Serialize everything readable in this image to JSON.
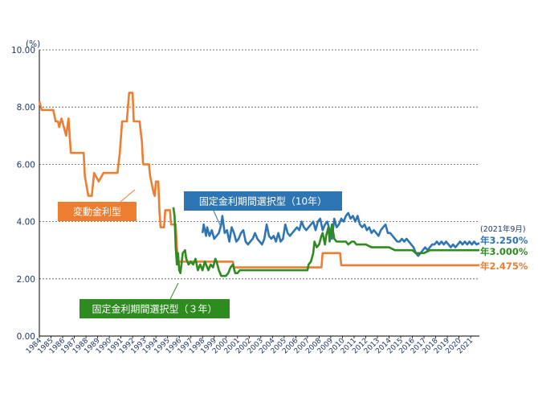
{
  "chart_data": {
    "type": "line",
    "y_unit": "(%)",
    "ylim": [
      0,
      10
    ],
    "yticks": [
      "0.00",
      "2.00",
      "4.00",
      "6.00",
      "8.00",
      "10.00"
    ],
    "x_range": [
      1984,
      2021.75
    ],
    "x_tick_labels": [
      "1984",
      "1985",
      "1986",
      "1987",
      "1988",
      "1989",
      "1990",
      "1991",
      "1992",
      "1993",
      "1994",
      "1995",
      "1996",
      "1997",
      "1998",
      "1999",
      "2000",
      "2001",
      "2002",
      "2003",
      "2004",
      "2005",
      "2006",
      "2007",
      "2008",
      "2009",
      "2010",
      "2011",
      "2012",
      "2013",
      "2014",
      "2015",
      "2016",
      "2017",
      "2018",
      "2019",
      "2020",
      "2021"
    ],
    "grid": "horizontal dashed",
    "date_note": "(2021年9月)",
    "colors": {
      "variable": "#ed7d31",
      "fixed10": "#2e75b6",
      "fixed3": "#2e8b1f",
      "axis": "#1f3864"
    },
    "series": [
      {
        "name": "変動金利型",
        "end_label": "年2.475%",
        "points": [
          [
            1984.0,
            8.2
          ],
          [
            1984.2,
            7.9
          ],
          [
            1985.2,
            7.9
          ],
          [
            1985.4,
            7.5
          ],
          [
            1985.6,
            7.5
          ],
          [
            1985.7,
            7.3
          ],
          [
            1985.9,
            7.6
          ],
          [
            1986.1,
            7.3
          ],
          [
            1986.3,
            7.0
          ],
          [
            1986.5,
            7.6
          ],
          [
            1986.7,
            6.4
          ],
          [
            1987.8,
            6.4
          ],
          [
            1987.9,
            5.6
          ],
          [
            1988.2,
            4.9
          ],
          [
            1988.5,
            4.9
          ],
          [
            1988.7,
            5.7
          ],
          [
            1989.1,
            5.4
          ],
          [
            1989.5,
            5.7
          ],
          [
            1990.7,
            5.7
          ],
          [
            1990.9,
            6.4
          ],
          [
            1991.1,
            7.5
          ],
          [
            1991.5,
            7.5
          ],
          [
            1991.7,
            8.5
          ],
          [
            1992.0,
            8.5
          ],
          [
            1992.1,
            7.5
          ],
          [
            1992.6,
            7.5
          ],
          [
            1992.8,
            6.8
          ],
          [
            1992.9,
            6.0
          ],
          [
            1993.4,
            6.0
          ],
          [
            1993.5,
            5.6
          ],
          [
            1993.8,
            5.0
          ],
          [
            1993.9,
            4.9
          ],
          [
            1994.0,
            5.4
          ],
          [
            1994.2,
            5.4
          ],
          [
            1994.3,
            4.4
          ],
          [
            1994.4,
            3.8
          ],
          [
            1994.7,
            3.8
          ],
          [
            1994.8,
            4.4
          ],
          [
            1995.2,
            4.4
          ],
          [
            1995.3,
            3.9
          ],
          [
            1995.7,
            3.9
          ],
          [
            1995.8,
            3.1
          ],
          [
            1995.9,
            2.6
          ],
          [
            2000.6,
            2.6
          ],
          [
            2000.7,
            2.4
          ],
          [
            2008.2,
            2.4
          ],
          [
            2008.3,
            2.9
          ],
          [
            2009.8,
            2.9
          ],
          [
            2009.9,
            2.475
          ],
          [
            2021.75,
            2.475
          ]
        ]
      },
      {
        "name": "固定金利期間選択型（10年）",
        "end_label": "年3.250%",
        "points": [
          [
            1998.0,
            3.6
          ],
          [
            1998.1,
            3.9
          ],
          [
            1998.3,
            3.5
          ],
          [
            1998.4,
            3.8
          ],
          [
            1998.6,
            3.5
          ],
          [
            1998.8,
            3.7
          ],
          [
            1999.0,
            3.4
          ],
          [
            1999.2,
            3.5
          ],
          [
            1999.4,
            3.6
          ],
          [
            1999.6,
            3.9
          ],
          [
            1999.7,
            4.2
          ],
          [
            1999.9,
            3.6
          ],
          [
            2000.1,
            3.7
          ],
          [
            2000.3,
            3.3
          ],
          [
            2000.5,
            3.8
          ],
          [
            2000.7,
            3.6
          ],
          [
            2000.9,
            3.3
          ],
          [
            2001.1,
            3.4
          ],
          [
            2001.3,
            3.6
          ],
          [
            2001.5,
            3.7
          ],
          [
            2001.7,
            3.3
          ],
          [
            2001.9,
            3.2
          ],
          [
            2002.1,
            3.3
          ],
          [
            2002.3,
            3.4
          ],
          [
            2002.5,
            3.6
          ],
          [
            2002.7,
            3.4
          ],
          [
            2002.9,
            3.3
          ],
          [
            2003.1,
            3.2
          ],
          [
            2003.3,
            3.4
          ],
          [
            2003.5,
            3.9
          ],
          [
            2003.7,
            3.5
          ],
          [
            2003.9,
            3.4
          ],
          [
            2004.1,
            3.5
          ],
          [
            2004.3,
            3.3
          ],
          [
            2004.5,
            3.6
          ],
          [
            2004.7,
            3.3
          ],
          [
            2004.9,
            3.4
          ],
          [
            2005.1,
            3.9
          ],
          [
            2005.3,
            3.6
          ],
          [
            2005.5,
            3.5
          ],
          [
            2005.7,
            3.6
          ],
          [
            2005.9,
            3.7
          ],
          [
            2006.1,
            3.8
          ],
          [
            2006.3,
            3.7
          ],
          [
            2006.5,
            4.0
          ],
          [
            2006.7,
            3.8
          ],
          [
            2006.9,
            3.7
          ],
          [
            2007.1,
            3.8
          ],
          [
            2007.3,
            3.9
          ],
          [
            2007.5,
            4.0
          ],
          [
            2007.7,
            3.7
          ],
          [
            2007.9,
            4.0
          ],
          [
            2008.1,
            4.1
          ],
          [
            2008.3,
            3.7
          ],
          [
            2008.5,
            3.9
          ],
          [
            2008.7,
            4.0
          ],
          [
            2008.9,
            3.7
          ],
          [
            2009.1,
            3.4
          ],
          [
            2009.3,
            4.1
          ],
          [
            2009.5,
            3.8
          ],
          [
            2009.7,
            3.9
          ],
          [
            2009.9,
            4.1
          ],
          [
            2010.1,
            4.0
          ],
          [
            2010.3,
            4.2
          ],
          [
            2010.5,
            4.3
          ],
          [
            2010.7,
            4.1
          ],
          [
            2010.9,
            4.2
          ],
          [
            2011.1,
            4.0
          ],
          [
            2011.3,
            4.2
          ],
          [
            2011.5,
            3.9
          ],
          [
            2011.7,
            3.8
          ],
          [
            2011.9,
            3.9
          ],
          [
            2012.1,
            3.7
          ],
          [
            2012.3,
            3.8
          ],
          [
            2012.5,
            3.6
          ],
          [
            2012.7,
            3.7
          ],
          [
            2012.9,
            3.6
          ],
          [
            2013.1,
            3.5
          ],
          [
            2013.3,
            3.7
          ],
          [
            2013.5,
            3.8
          ],
          [
            2013.7,
            3.9
          ],
          [
            2013.9,
            3.6
          ],
          [
            2014.1,
            3.6
          ],
          [
            2014.3,
            3.5
          ],
          [
            2014.5,
            3.4
          ],
          [
            2014.7,
            3.3
          ],
          [
            2014.9,
            3.3
          ],
          [
            2015.1,
            3.4
          ],
          [
            2015.3,
            3.3
          ],
          [
            2015.5,
            3.4
          ],
          [
            2015.7,
            3.3
          ],
          [
            2015.9,
            3.2
          ],
          [
            2016.1,
            3.1
          ],
          [
            2016.3,
            2.9
          ],
          [
            2016.5,
            2.8
          ],
          [
            2016.7,
            2.9
          ],
          [
            2016.9,
            3.0
          ],
          [
            2017.1,
            3.1
          ],
          [
            2017.3,
            3.0
          ],
          [
            2017.5,
            3.1
          ],
          [
            2017.7,
            3.2
          ],
          [
            2017.9,
            3.2
          ],
          [
            2018.1,
            3.3
          ],
          [
            2018.3,
            3.2
          ],
          [
            2018.5,
            3.3
          ],
          [
            2018.7,
            3.2
          ],
          [
            2018.9,
            3.3
          ],
          [
            2019.1,
            3.2
          ],
          [
            2019.3,
            3.1
          ],
          [
            2019.5,
            3.2
          ],
          [
            2019.7,
            3.1
          ],
          [
            2019.9,
            3.2
          ],
          [
            2020.1,
            3.3
          ],
          [
            2020.3,
            3.2
          ],
          [
            2020.5,
            3.3
          ],
          [
            2020.7,
            3.2
          ],
          [
            2020.9,
            3.3
          ],
          [
            2021.1,
            3.2
          ],
          [
            2021.3,
            3.3
          ],
          [
            2021.5,
            3.2
          ],
          [
            2021.75,
            3.25
          ]
        ]
      },
      {
        "name": "固定金利期間選択型（３年）",
        "end_label": "年3.000%",
        "points": [
          [
            1995.5,
            4.5
          ],
          [
            1995.6,
            4.2
          ],
          [
            1995.7,
            3.1
          ],
          [
            1995.8,
            2.5
          ],
          [
            1995.9,
            2.9
          ],
          [
            1996.0,
            2.3
          ],
          [
            1996.1,
            2.2
          ],
          [
            1996.3,
            2.9
          ],
          [
            1996.5,
            3.0
          ],
          [
            1996.6,
            2.7
          ],
          [
            1996.8,
            2.5
          ],
          [
            1997.0,
            2.6
          ],
          [
            1997.2,
            2.5
          ],
          [
            1997.4,
            2.7
          ],
          [
            1997.6,
            2.3
          ],
          [
            1997.8,
            2.5
          ],
          [
            1998.0,
            2.3
          ],
          [
            1998.2,
            2.6
          ],
          [
            1998.3,
            2.5
          ],
          [
            1998.5,
            2.3
          ],
          [
            1998.7,
            2.5
          ],
          [
            1998.9,
            2.4
          ],
          [
            1999.1,
            2.7
          ],
          [
            1999.2,
            2.6
          ],
          [
            1999.4,
            2.3
          ],
          [
            1999.6,
            2.1
          ],
          [
            1999.8,
            2.1
          ],
          [
            2000.0,
            2.1
          ],
          [
            2000.2,
            2.2
          ],
          [
            2000.4,
            2.4
          ],
          [
            2000.6,
            2.5
          ],
          [
            2000.8,
            2.2
          ],
          [
            2001.0,
            2.2
          ],
          [
            2001.2,
            2.3
          ],
          [
            2001.4,
            2.3
          ],
          [
            2002.5,
            2.3
          ],
          [
            2004.0,
            2.3
          ],
          [
            2005.0,
            2.3
          ],
          [
            2006.0,
            2.3
          ],
          [
            2007.0,
            2.3
          ],
          [
            2007.1,
            2.5
          ],
          [
            2007.3,
            2.6
          ],
          [
            2007.5,
            2.9
          ],
          [
            2007.6,
            3.3
          ],
          [
            2007.8,
            3.1
          ],
          [
            2008.0,
            3.2
          ],
          [
            2008.2,
            3.5
          ],
          [
            2008.3,
            3.6
          ],
          [
            2008.5,
            3.2
          ],
          [
            2008.6,
            3.5
          ],
          [
            2008.8,
            3.8
          ],
          [
            2008.9,
            3.3
          ],
          [
            2009.1,
            3.9
          ],
          [
            2009.3,
            3.4
          ],
          [
            2009.5,
            3.3
          ],
          [
            2009.7,
            3.3
          ],
          [
            2010.0,
            3.3
          ],
          [
            2010.3,
            3.3
          ],
          [
            2010.5,
            3.2
          ],
          [
            2010.8,
            3.3
          ],
          [
            2011.0,
            3.3
          ],
          [
            2011.2,
            3.2
          ],
          [
            2011.5,
            3.2
          ],
          [
            2012.0,
            3.2
          ],
          [
            2012.5,
            3.1
          ],
          [
            2013.0,
            3.1
          ],
          [
            2014.0,
            3.1
          ],
          [
            2014.5,
            3.0
          ],
          [
            2016.0,
            3.0
          ],
          [
            2016.3,
            2.9
          ],
          [
            2016.8,
            2.9
          ],
          [
            2017.0,
            2.9
          ],
          [
            2017.5,
            3.0
          ],
          [
            2018.0,
            3.0
          ],
          [
            2019.0,
            3.0
          ],
          [
            2020.0,
            3.0
          ],
          [
            2021.0,
            3.0
          ],
          [
            2021.75,
            3.0
          ]
        ]
      }
    ]
  }
}
